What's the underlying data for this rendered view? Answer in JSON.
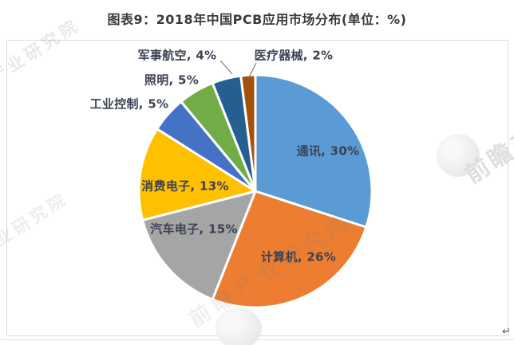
{
  "title": "图表9：2018年中国PCB应用市场分布(单位：%)",
  "chart_data": {
    "type": "pie",
    "title": "图表9：2018年中国PCB应用市场分布(单位：%)",
    "unit": "%",
    "categories": [
      "通讯",
      "计算机",
      "汽车电子",
      "消费电子",
      "工业控制",
      "照明",
      "军事航空",
      "医疗器械"
    ],
    "values": [
      30,
      26,
      15,
      13,
      5,
      5,
      4,
      2
    ],
    "colors": [
      "#5B9BD5",
      "#ED7D31",
      "#A5A5A5",
      "#FFC000",
      "#4472C4",
      "#70AD47",
      "#255E91",
      "#A4510E"
    ],
    "start_angle_deg": 0,
    "direction": "clockwise",
    "slice_border_color": "#ffffff",
    "label_format": "{name}, {value}%",
    "label_color": "#3d4254",
    "legend": "none",
    "labels_rendered": [
      "通讯, 30%",
      "计算机, 26%",
      "汽车电子, 15%",
      "消费电子, 13%",
      "工业控制, 5%",
      "照明, 5%",
      "军事航空, 4%",
      "医疗器械, 2%"
    ]
  },
  "watermark": {
    "brand": "前瞻产业研究院",
    "short": "前瞻"
  },
  "page": {
    "return_mark": "↵"
  }
}
